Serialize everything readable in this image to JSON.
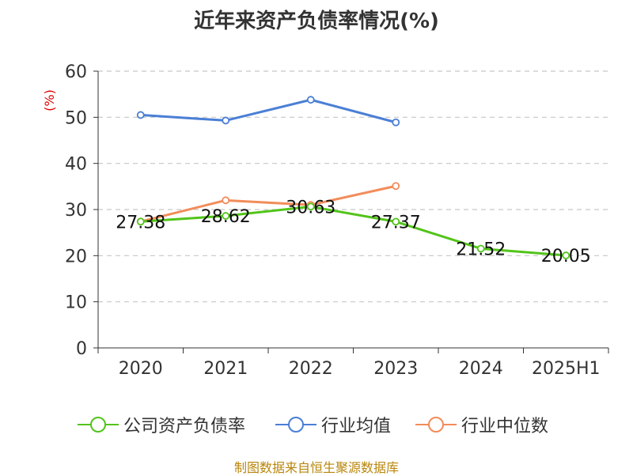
{
  "title": "近年来资产负债率情况(%)",
  "source": "制图数据来自恒生聚源数据库",
  "chart_data": {
    "type": "line",
    "title": "近年来资产负债率情况(%)",
    "ylabel": "(%)",
    "xlabel": "",
    "categories": [
      "2020",
      "2021",
      "2022",
      "2023",
      "2024",
      "2025H1"
    ],
    "ylim": [
      0,
      60
    ],
    "yticks": [
      0,
      10,
      20,
      30,
      40,
      50,
      60
    ],
    "grid": true,
    "legend_position": "bottom",
    "series": [
      {
        "name": "公司资产负债率",
        "color": "#52c41a",
        "values": [
          27.38,
          28.62,
          30.63,
          27.37,
          21.52,
          20.05
        ],
        "labels": [
          "27.38",
          "28.62",
          "30.63",
          "27.37",
          "21.52",
          "20.05"
        ]
      },
      {
        "name": "行业均值",
        "color": "#4a7fd6",
        "values": [
          50.5,
          49.3,
          53.8,
          48.9,
          null,
          null
        ]
      },
      {
        "name": "行业中位数",
        "color": "#f28c5a",
        "values": [
          27.4,
          32.0,
          31.0,
          35.1,
          null,
          null
        ]
      }
    ]
  }
}
